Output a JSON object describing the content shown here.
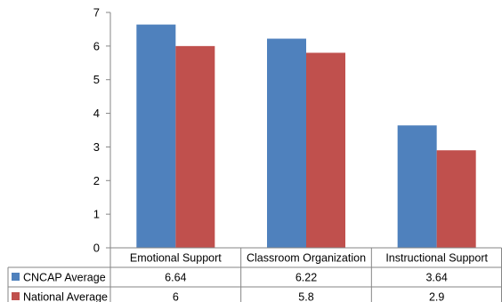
{
  "chart_data": {
    "type": "bar",
    "categories": [
      "Emotional Support",
      "Classroom Organization",
      "Instructional Support"
    ],
    "series": [
      {
        "name": "CNCAP Average",
        "values": [
          6.64,
          6.22,
          3.64
        ],
        "color": "#4f81bd"
      },
      {
        "name": "National Average",
        "values": [
          6,
          5.8,
          2.9
        ],
        "color": "#c0504d"
      }
    ],
    "table_values": [
      [
        "6.64",
        "6.22",
        "3.64"
      ],
      [
        "6",
        "5.8",
        "2.9"
      ]
    ],
    "yticks": [
      "0",
      "1",
      "2",
      "3",
      "4",
      "5",
      "6",
      "7"
    ],
    "ylim": [
      0,
      7
    ],
    "grid": false,
    "legend": "data-table"
  }
}
